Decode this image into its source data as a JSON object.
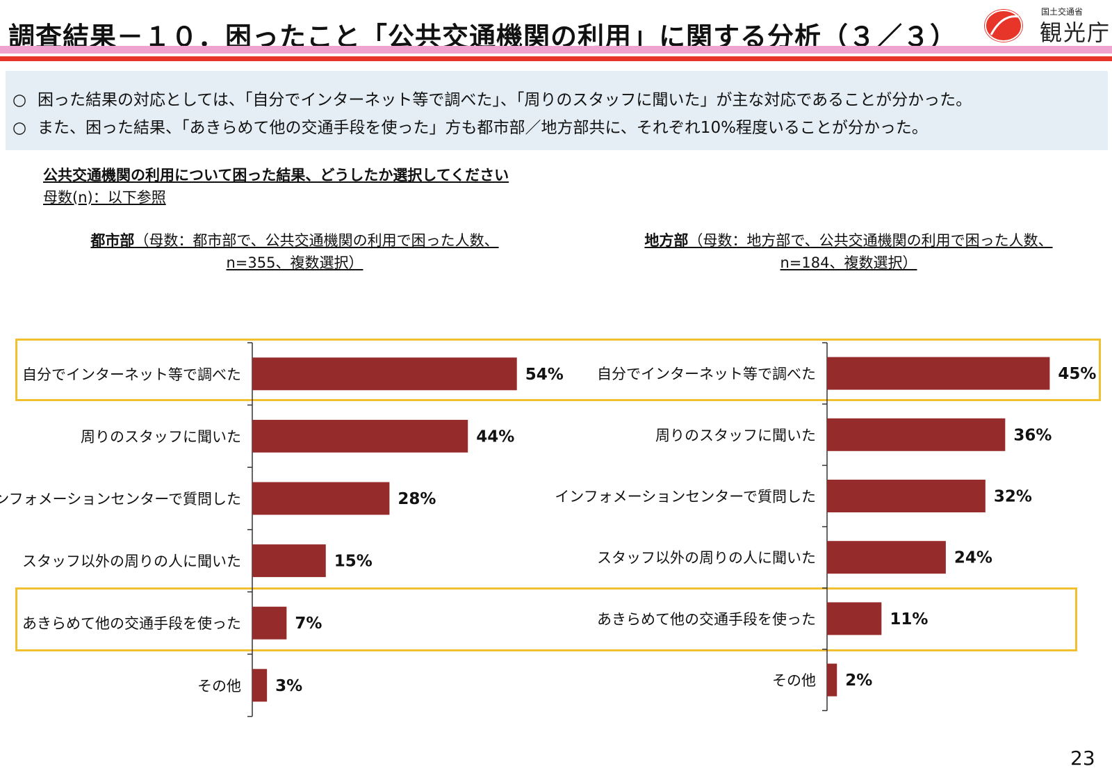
{
  "header": {
    "title": "調査結果－１０．困ったこと「公共交通機関の利用」に関する分析（３／３）",
    "logo_ministry": "国土交通省",
    "logo_agency": "観光庁"
  },
  "summary": {
    "bullet": "○",
    "lines": [
      "困った結果の対応としては、「自分でインターネット等で調べた」、「周りのスタッフに聞いた」が主な対応であることが分かった。",
      "また、困った結果、「あきらめて他の交通手段を使った」方も都市部／地方部共に、それぞれ10%程度いることが分かった。"
    ]
  },
  "question": {
    "title": "公共交通機関の利用について困った結果、どうしたか選択してください",
    "sample": "母数(n)：以下参照"
  },
  "panels": [
    {
      "name_bold": "都市部",
      "caption_line1": "（母数：都市部で、公共交通機関の利用で困った人数、",
      "caption_line2": "n=355、複数選択）"
    },
    {
      "name_bold": "地方部",
      "caption_line1": "（母数：地方部で、公共交通機関の利用で困った人数、",
      "caption_line2": "n=184、複数選択）"
    }
  ],
  "chart_data": [
    {
      "type": "bar",
      "orientation": "horizontal",
      "title": "都市部（母数：都市部で、公共交通機関の利用で困った人数、n=355、複数選択）",
      "categories": [
        "自分でインターネット等で調べた",
        "周りのスタッフに聞いた",
        "インフォメーションセンターで質問した",
        "スタッフ以外の周りの人に聞いた",
        "あきらめて他の交通手段を使った",
        "その他"
      ],
      "values": [
        54,
        44,
        28,
        15,
        7,
        3
      ],
      "value_labels": [
        "54%",
        "44%",
        "28%",
        "15%",
        "7%",
        "3%"
      ],
      "xlim": [
        0,
        100
      ],
      "bar_color": "#952b2a",
      "highlighted_categories": [
        "自分でインターネット等で調べた",
        "あきらめて他の交通手段を使った"
      ]
    },
    {
      "type": "bar",
      "orientation": "horizontal",
      "title": "地方部（母数：地方部で、公共交通機関の利用で困った人数、n=184、複数選択）",
      "categories": [
        "自分でインターネット等で調べた",
        "周りのスタッフに聞いた",
        "インフォメーションセンターで質問した",
        "スタッフ以外の周りの人に聞いた",
        "あきらめて他の交通手段を使った",
        "その他"
      ],
      "values": [
        45,
        36,
        32,
        24,
        11,
        2
      ],
      "value_labels": [
        "45%",
        "36%",
        "32%",
        "24%",
        "11%",
        "2%"
      ],
      "xlim": [
        0,
        100
      ],
      "bar_color": "#952b2a",
      "highlighted_categories": [
        "自分でインターネット等で調べた",
        "あきらめて他の交通手段を使った"
      ]
    }
  ],
  "footer": {
    "page_number": "23"
  },
  "colors": {
    "highlight_border": "#f0c030",
    "pink_band": "#f1a3cf",
    "red_band": "#e8352a",
    "summary_bg": "#e4eef4"
  }
}
